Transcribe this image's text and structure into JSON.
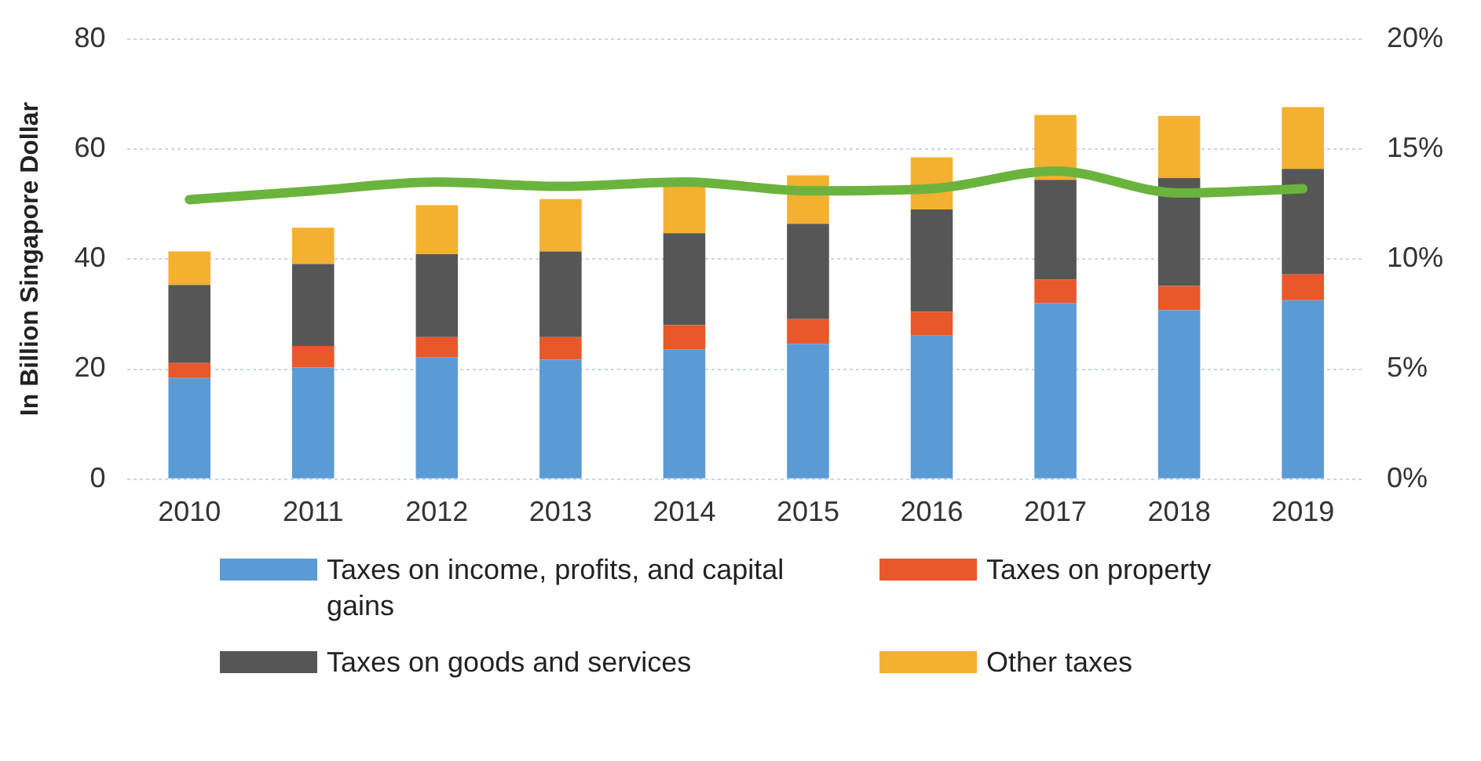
{
  "chart_data": {
    "type": "bar",
    "stacked": true,
    "ylabel": "In Billion Singapore Dollar",
    "categories": [
      "2010",
      "2011",
      "2012",
      "2013",
      "2014",
      "2015",
      "2016",
      "2017",
      "2018",
      "2019"
    ],
    "series": [
      {
        "name": "Taxes on income, profits, and capital gains",
        "color": "#5b9bd5",
        "values": [
          18.4,
          20.3,
          22.1,
          21.7,
          23.6,
          24.6,
          26.1,
          32.0,
          30.7,
          32.5
        ]
      },
      {
        "name": "Taxes on property",
        "color": "#e8582a",
        "values": [
          2.7,
          3.9,
          3.7,
          4.1,
          4.4,
          4.5,
          4.3,
          4.3,
          4.4,
          4.7
        ]
      },
      {
        "name": "Taxes on goods and services",
        "color": "#565656",
        "values": [
          14.2,
          14.9,
          15.1,
          15.6,
          16.7,
          17.3,
          18.6,
          18.1,
          19.6,
          19.2
        ]
      },
      {
        "name": "Other taxes",
        "color": "#f4b030",
        "values": [
          6.1,
          6.6,
          8.9,
          9.5,
          8.9,
          8.8,
          9.5,
          11.8,
          11.3,
          11.2
        ]
      },
      {
        "type": "line",
        "axis": "y2",
        "color": "#6ab43e",
        "values": [
          12.7,
          13.1,
          13.5,
          13.3,
          13.5,
          13.1,
          13.2,
          14.0,
          13.0,
          13.2
        ]
      }
    ],
    "ylim": [
      0,
      80
    ],
    "yticks": [
      0,
      20,
      40,
      60,
      80
    ],
    "y2lim": [
      0,
      20
    ],
    "y2ticks": [
      {
        "value": 0,
        "label": "0%"
      },
      {
        "value": 5,
        "label": "5%"
      },
      {
        "value": 10,
        "label": "10%"
      },
      {
        "value": 15,
        "label": "15%"
      },
      {
        "value": 20,
        "label": "20%"
      }
    ],
    "grid": "y",
    "legend": "bottom",
    "marker": "none"
  }
}
